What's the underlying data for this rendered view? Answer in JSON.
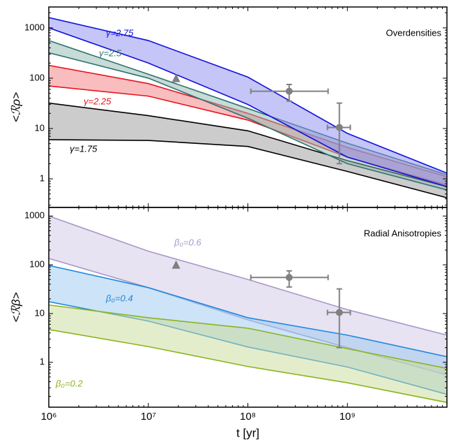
{
  "chart_data": [
    {
      "type": "band",
      "annotation": "Overdensities",
      "ylabel": "<ℛρ>",
      "xlog": true,
      "ylog": true,
      "xlim": [
        1000000,
        10000000000
      ],
      "ylim": [
        0.27,
        2600
      ],
      "xticks": [
        1000000,
        10000000,
        100000000,
        1000000000
      ],
      "yticks": [
        1,
        10,
        100,
        1000
      ],
      "x": [
        1000000,
        10000000,
        100000000,
        1000000000,
        10000000000
      ],
      "series": [
        {
          "name": "γ=1.75",
          "color": "#000000",
          "fill": "#9a9a9a",
          "upper": [
            32,
            18,
            9,
            2.3,
            0.7
          ],
          "lower": [
            6,
            5.8,
            4.4,
            1.4,
            0.42
          ]
        },
        {
          "name": "γ=2.25",
          "color": "#e8141e",
          "fill": "#f47c80",
          "upper": [
            180,
            78,
            20,
            4.2,
            1.1
          ],
          "lower": [
            70,
            44,
            14.7,
            2.7,
            0.75
          ]
        },
        {
          "name": "γ=2.5",
          "color": "#2e7370",
          "fill": "#8fb8b0",
          "upper": [
            560,
            120,
            25,
            5.1,
            1.2
          ],
          "lower": [
            320,
            100,
            16,
            2.0,
            0.6
          ]
        },
        {
          "name": "γ=2.75",
          "color": "#1010e0",
          "fill": "#8c8cf0",
          "upper": [
            1600,
            560,
            105,
            8,
            1.3
          ],
          "lower": [
            1000,
            200,
            30,
            2.7,
            0.7
          ]
        }
      ],
      "points": {
        "color": "#808080",
        "markers": [
          "triangle",
          "circle",
          "circle"
        ],
        "x": [
          19000000,
          260000000,
          830000000
        ],
        "values": [
          98,
          55,
          10.5
        ],
        "xlow": [
          null,
          107000000,
          630000000
        ],
        "xhigh": [
          null,
          640000000,
          1070000000
        ],
        "ylow": [
          null,
          35,
          2
        ],
        "yhigh": [
          null,
          75,
          32
        ]
      }
    },
    {
      "type": "band",
      "annotation": "Radial Anisotropies",
      "ylabel": "<ℛβ>",
      "xlabel": "t [yr]",
      "xlog": true,
      "ylog": true,
      "xlim": [
        1000000,
        10000000000
      ],
      "ylim": [
        0.12,
        1500
      ],
      "xticks": [
        {
          "value": 1000000,
          "label": "10⁶"
        },
        {
          "value": 10000000,
          "label": "10⁷"
        },
        {
          "value": 100000000,
          "label": "10⁸"
        },
        {
          "value": 1000000000,
          "label": "10⁹"
        }
      ],
      "yticks": [
        1,
        10,
        100,
        1000
      ],
      "x": [
        1000000,
        10000000,
        100000000,
        1000000000,
        10000000000
      ],
      "series": [
        {
          "name": "β₀=0.6",
          "color": "#a898c8",
          "fill": "#d0c8e6",
          "upper": [
            1000,
            190,
            50,
            12,
            3.6
          ],
          "lower": [
            135,
            34,
            7.4,
            2,
            0.55
          ]
        },
        {
          "name": "β₀=0.4",
          "color": "#1e88e0",
          "fill": "#9cc8f0",
          "upper": [
            97,
            34,
            8.2,
            3.6,
            1.3
          ],
          "lower": [
            17.5,
            7,
            2.06,
            0.8,
            0.22
          ]
        },
        {
          "name": "β₀=0.2",
          "color": "#8cb41e",
          "fill": "#cadc98",
          "upper": [
            15,
            8.2,
            5,
            1.9,
            0.75
          ],
          "lower": [
            4.7,
            2.1,
            0.82,
            0.38,
            0.15
          ]
        }
      ],
      "points": {
        "color": "#808080",
        "markers": [
          "triangle",
          "circle",
          "circle"
        ],
        "x": [
          19000000,
          260000000,
          830000000
        ],
        "values": [
          98,
          55,
          10.5
        ],
        "xlow": [
          null,
          107000000,
          630000000
        ],
        "xhigh": [
          null,
          640000000,
          1070000000
        ],
        "ylow": [
          null,
          35,
          2
        ],
        "yhigh": [
          null,
          75,
          32
        ]
      }
    }
  ]
}
